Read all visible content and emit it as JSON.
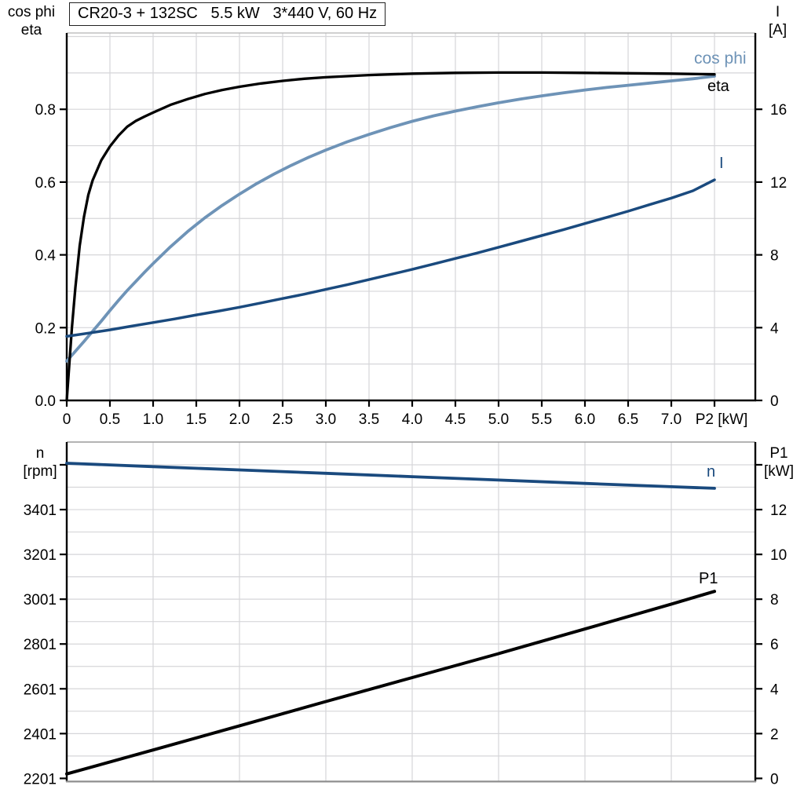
{
  "title_box": {
    "text": "CR20-3 + 132SC   5.5 kW   3*440 V, 60 Hz"
  },
  "colors": {
    "eta": "#000000",
    "cos_phi": "#6e93b7",
    "current": "#1a4a7e",
    "speed": "#1a4a7e",
    "p1": "#000000",
    "grid": "#d6d6d9",
    "axis": "#000000",
    "frame_gray": "#8f8f8f",
    "frame_light": "#b3b3b3"
  },
  "chart_data": [
    {
      "type": "line",
      "title": "Motor curves: efficiency, power factor and current vs shaft power",
      "x_axis": {
        "label": "P2 [kW]",
        "range": [
          0,
          7.97
        ],
        "grid_step": 0.5,
        "ticks": [
          0,
          0.5,
          1.0,
          1.5,
          2.0,
          2.5,
          3.0,
          3.5,
          4.0,
          4.5,
          5.0,
          5.5,
          6.0,
          6.5,
          7.0
        ],
        "tick_labels": [
          "0",
          "0.5",
          "1.0",
          "1.5",
          "2.0",
          "2.5",
          "3.0",
          "3.5",
          "4.0",
          "4.5",
          "5.0",
          "5.5",
          "6.0",
          "6.5",
          "7.0"
        ]
      },
      "left_axis": {
        "title_lines": "cos phi\neta",
        "range": [
          0,
          1.01
        ],
        "grid_step": 0.1,
        "ticks": [
          0.0,
          0.2,
          0.4,
          0.6,
          0.8
        ],
        "tick_labels": [
          "0.0",
          "0.2",
          "0.4",
          "0.6",
          "0.8"
        ]
      },
      "right_axis": {
        "title_lines": "I\n[A]",
        "range": [
          0,
          20.2
        ],
        "ticks": [
          0,
          4,
          8,
          12,
          16
        ],
        "tick_labels": [
          "0",
          "4",
          "8",
          "12",
          "16"
        ],
        "scale_vs_left": 20
      },
      "legend_position": "curve-end-labels",
      "grid": true,
      "series": [
        {
          "name": "eta",
          "label": "eta",
          "color_key": "eta",
          "axis": "left",
          "points": [
            [
              0,
              0
            ],
            [
              0.03,
              0.1
            ],
            [
              0.06,
              0.2
            ],
            [
              0.1,
              0.31
            ],
            [
              0.15,
              0.425
            ],
            [
              0.2,
              0.505
            ],
            [
              0.25,
              0.565
            ],
            [
              0.3,
              0.605
            ],
            [
              0.4,
              0.66
            ],
            [
              0.5,
              0.698
            ],
            [
              0.6,
              0.728
            ],
            [
              0.7,
              0.752
            ],
            [
              0.8,
              0.768
            ],
            [
              0.9,
              0.78
            ],
            [
              1.0,
              0.791
            ],
            [
              1.2,
              0.812
            ],
            [
              1.4,
              0.828
            ],
            [
              1.6,
              0.842
            ],
            [
              1.8,
              0.853
            ],
            [
              2.0,
              0.862
            ],
            [
              2.25,
              0.871
            ],
            [
              2.5,
              0.878
            ],
            [
              2.75,
              0.884
            ],
            [
              3.0,
              0.888
            ],
            [
              3.25,
              0.891
            ],
            [
              3.5,
              0.894
            ],
            [
              3.75,
              0.896
            ],
            [
              4.0,
              0.898
            ],
            [
              4.5,
              0.9
            ],
            [
              5.0,
              0.901
            ],
            [
              5.5,
              0.901
            ],
            [
              6.0,
              0.9
            ],
            [
              6.5,
              0.899
            ],
            [
              7.0,
              0.898
            ],
            [
              7.5,
              0.896
            ]
          ]
        },
        {
          "name": "cos phi",
          "label": "cos phi",
          "color_key": "cos_phi",
          "axis": "left",
          "points": [
            [
              0,
              0.108
            ],
            [
              0.1,
              0.135
            ],
            [
              0.2,
              0.162
            ],
            [
              0.3,
              0.19
            ],
            [
              0.4,
              0.218
            ],
            [
              0.5,
              0.247
            ],
            [
              0.6,
              0.275
            ],
            [
              0.7,
              0.302
            ],
            [
              0.8,
              0.327
            ],
            [
              0.9,
              0.352
            ],
            [
              1.0,
              0.376
            ],
            [
              1.2,
              0.422
            ],
            [
              1.4,
              0.464
            ],
            [
              1.6,
              0.502
            ],
            [
              1.8,
              0.536
            ],
            [
              2.0,
              0.567
            ],
            [
              2.2,
              0.596
            ],
            [
              2.4,
              0.622
            ],
            [
              2.6,
              0.646
            ],
            [
              2.8,
              0.668
            ],
            [
              3.0,
              0.688
            ],
            [
              3.25,
              0.711
            ],
            [
              3.5,
              0.731
            ],
            [
              3.75,
              0.75
            ],
            [
              4.0,
              0.767
            ],
            [
              4.25,
              0.782
            ],
            [
              4.5,
              0.795
            ],
            [
              4.75,
              0.807
            ],
            [
              5.0,
              0.818
            ],
            [
              5.25,
              0.828
            ],
            [
              5.5,
              0.837
            ],
            [
              5.75,
              0.845
            ],
            [
              6.0,
              0.853
            ],
            [
              6.25,
              0.86
            ],
            [
              6.5,
              0.866
            ],
            [
              6.75,
              0.872
            ],
            [
              7.0,
              0.878
            ],
            [
              7.25,
              0.884
            ],
            [
              7.5,
              0.891
            ]
          ]
        },
        {
          "name": "I",
          "label": "I",
          "color_key": "current",
          "axis": "left",
          "amps_per_unit": 20,
          "points": [
            [
              0,
              0.176
            ],
            [
              0.25,
              0.185
            ],
            [
              0.5,
              0.194
            ],
            [
              0.75,
              0.204
            ],
            [
              1.0,
              0.214
            ],
            [
              1.25,
              0.224
            ],
            [
              1.5,
              0.235
            ],
            [
              1.75,
              0.245
            ],
            [
              2.0,
              0.256
            ],
            [
              2.25,
              0.268
            ],
            [
              2.5,
              0.28
            ],
            [
              2.75,
              0.292
            ],
            [
              3.0,
              0.305
            ],
            [
              3.25,
              0.318
            ],
            [
              3.5,
              0.332
            ],
            [
              3.75,
              0.346
            ],
            [
              4.0,
              0.36
            ],
            [
              4.25,
              0.375
            ],
            [
              4.5,
              0.39
            ],
            [
              4.75,
              0.405
            ],
            [
              5.0,
              0.421
            ],
            [
              5.25,
              0.437
            ],
            [
              5.5,
              0.453
            ],
            [
              5.75,
              0.469
            ],
            [
              6.0,
              0.486
            ],
            [
              6.25,
              0.503
            ],
            [
              6.5,
              0.52
            ],
            [
              6.75,
              0.538
            ],
            [
              7.0,
              0.556
            ],
            [
              7.25,
              0.576
            ],
            [
              7.5,
              0.606
            ]
          ]
        }
      ],
      "curve_end_labels": [
        {
          "text": "cos phi",
          "color_key": "cos_phi"
        },
        {
          "text": "eta",
          "color_key": "eta"
        },
        {
          "text": "I",
          "color_key": "current"
        }
      ]
    },
    {
      "type": "line",
      "title": "Motor curves: speed and input power vs shaft power",
      "x_axis": {
        "label": "",
        "range": [
          0,
          7.97
        ],
        "grid_step": 1.0,
        "ticks": [],
        "tick_labels": []
      },
      "left_axis": {
        "title_lines": "n\n[rpm]",
        "range": [
          2201,
          3703
        ],
        "grid_step": 100,
        "ticks": [
          2201,
          2401,
          2601,
          2801,
          3001,
          3201,
          3401
        ],
        "tick_labels": [
          "2201",
          "2401",
          "2601",
          "2801",
          "3001",
          "3201",
          "3401"
        ],
        "unlabeled_ticks": [
          3601
        ]
      },
      "right_axis": {
        "title_lines": "P1\n[kW]",
        "range": [
          0,
          15.02
        ],
        "ticks": [
          0,
          2,
          4,
          6,
          8,
          10,
          12
        ],
        "tick_labels": [
          "0",
          "2",
          "4",
          "6",
          "8",
          "10",
          "12"
        ],
        "unlabeled_ticks": [
          14
        ]
      },
      "legend_position": "curve-end-labels",
      "grid": true,
      "series": [
        {
          "name": "n",
          "label": "n",
          "color_key": "speed",
          "axis": "left",
          "unit": "rpm",
          "points": [
            [
              0,
              3608
            ],
            [
              1.0,
              3593
            ],
            [
              2.0,
              3578
            ],
            [
              3.0,
              3563
            ],
            [
              4.0,
              3548
            ],
            [
              5.0,
              3533
            ],
            [
              6.0,
              3518
            ],
            [
              7.0,
              3503
            ],
            [
              7.5,
              3496
            ]
          ]
        },
        {
          "name": "P1",
          "label": "P1",
          "color_key": "p1",
          "axis": "right",
          "unit": "kW",
          "points": [
            [
              0,
              0.2
            ],
            [
              1.0,
              1.27
            ],
            [
              2.0,
              2.35
            ],
            [
              3.0,
              3.43
            ],
            [
              4.0,
              4.5
            ],
            [
              5.0,
              5.57
            ],
            [
              6.0,
              6.67
            ],
            [
              7.0,
              7.78
            ],
            [
              7.5,
              8.35
            ]
          ]
        }
      ],
      "curve_end_labels": [
        {
          "text": "n",
          "color_key": "speed"
        },
        {
          "text": "P1",
          "color_key": "p1"
        }
      ]
    }
  ]
}
